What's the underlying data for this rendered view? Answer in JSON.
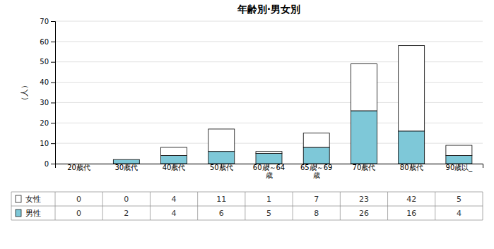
{
  "chart_data": {
    "type": "bar",
    "title": "年齢別·男女別",
    "ylabel": "（人）",
    "categories": [
      "20歳代",
      "30歳代",
      "40歳代",
      "50歳代",
      "60歳～64\n歳",
      "65歳～69\n歳",
      "70歳代",
      "80歳代",
      "90歳以_"
    ],
    "series": [
      {
        "name": "男性",
        "color": "#7ec8d8",
        "values": [
          0,
          2,
          4,
          6,
          5,
          8,
          26,
          16,
          4
        ]
      },
      {
        "name": "女性",
        "color": "#ffffff",
        "values": [
          0,
          0,
          4,
          11,
          1,
          7,
          23,
          42,
          5
        ]
      }
    ],
    "stacked": true,
    "ylim": [
      0,
      70
    ],
    "yticks": [
      0,
      10,
      20,
      30,
      40,
      50,
      60,
      70
    ],
    "grid": true,
    "legend": "bottom"
  }
}
